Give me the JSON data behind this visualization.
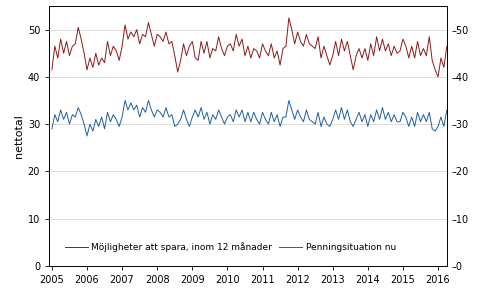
{
  "title": "",
  "ylabel_left": "nettotal",
  "ylim": [
    0,
    55
  ],
  "yticks": [
    0,
    10,
    20,
    30,
    40,
    50
  ],
  "xlim_start": 2004.92,
  "xlim_end": 2016.25,
  "xticks": [
    2005,
    2006,
    2007,
    2008,
    2009,
    2010,
    2011,
    2012,
    2013,
    2014,
    2015,
    2016
  ],
  "color_red": "#8B1A1A",
  "color_blue": "#1F5F9F",
  "legend_labels": [
    "Möjligheter att spara, inom 12 månader",
    "Penningsituation nu"
  ],
  "red_series": [
    41.5,
    46.5,
    44.0,
    48.0,
    45.0,
    47.5,
    44.5,
    46.5,
    47.0,
    50.5,
    48.0,
    45.0,
    41.5,
    44.0,
    42.0,
    45.0,
    42.5,
    44.0,
    43.0,
    47.5,
    44.5,
    46.5,
    45.5,
    43.5,
    46.5,
    51.0,
    48.0,
    49.5,
    48.5,
    50.0,
    47.0,
    49.0,
    48.5,
    51.5,
    49.0,
    46.5,
    49.0,
    48.5,
    47.5,
    49.5,
    47.0,
    47.5,
    44.5,
    41.0,
    43.5,
    47.0,
    44.5,
    46.5,
    47.5,
    44.0,
    43.5,
    47.5,
    45.0,
    47.5,
    44.0,
    46.0,
    45.5,
    48.5,
    46.0,
    44.5,
    46.5,
    47.0,
    45.5,
    49.0,
    46.5,
    48.0,
    44.5,
    46.5,
    44.0,
    46.0,
    45.5,
    44.0,
    47.0,
    45.5,
    44.5,
    47.0,
    44.0,
    45.5,
    42.5,
    46.0,
    46.5,
    52.5,
    50.0,
    47.0,
    49.5,
    47.5,
    46.5,
    49.0,
    47.0,
    46.5,
    46.0,
    48.5,
    44.0,
    46.5,
    44.5,
    42.5,
    44.5,
    47.5,
    44.5,
    48.0,
    45.5,
    47.5,
    44.5,
    41.5,
    44.5,
    46.0,
    44.0,
    46.0,
    43.5,
    47.0,
    44.5,
    48.5,
    45.5,
    48.0,
    45.5,
    47.0,
    44.5,
    46.5,
    45.0,
    45.5,
    48.0,
    46.5,
    44.0,
    46.5,
    44.0,
    47.5,
    44.5,
    46.0,
    44.5,
    48.5,
    43.5,
    41.5,
    40.0,
    44.0,
    42.0,
    46.5,
    44.0,
    46.5,
    43.5,
    46.5,
    41.5,
    45.5,
    43.0,
    40.5,
    39.5,
    43.0,
    40.5,
    44.0,
    42.0,
    44.5,
    42.0,
    45.0,
    42.5,
    43.0,
    44.5,
    48.5,
    51.5,
    46.5,
    44.5,
    48.5,
    45.0,
    48.0,
    44.5,
    47.0,
    44.0,
    39.0,
    38.5,
    43.5,
    45.5
  ],
  "blue_series": [
    29.0,
    32.0,
    30.5,
    33.0,
    31.0,
    32.5,
    30.0,
    32.0,
    31.5,
    33.5,
    32.0,
    30.0,
    27.5,
    30.0,
    28.5,
    31.0,
    29.5,
    31.5,
    29.0,
    32.5,
    30.5,
    32.0,
    31.0,
    29.5,
    31.5,
    35.0,
    33.0,
    34.5,
    33.0,
    34.0,
    31.5,
    33.5,
    32.5,
    35.0,
    33.0,
    31.5,
    33.0,
    32.5,
    31.5,
    33.5,
    31.5,
    32.0,
    29.5,
    30.0,
    31.0,
    33.0,
    31.0,
    29.5,
    31.5,
    33.0,
    31.5,
    33.5,
    31.0,
    32.5,
    30.0,
    32.0,
    31.0,
    33.0,
    31.5,
    30.0,
    31.5,
    32.0,
    30.5,
    33.0,
    31.5,
    33.0,
    30.5,
    32.5,
    30.5,
    32.5,
    31.0,
    30.0,
    32.5,
    31.0,
    30.0,
    32.5,
    30.5,
    32.0,
    29.5,
    31.5,
    31.5,
    35.0,
    33.0,
    31.0,
    33.0,
    31.5,
    30.5,
    33.0,
    31.0,
    30.5,
    30.0,
    32.5,
    29.5,
    31.5,
    30.0,
    29.5,
    31.0,
    33.0,
    31.0,
    33.5,
    31.0,
    33.0,
    30.5,
    29.5,
    31.0,
    32.5,
    30.5,
    32.0,
    29.5,
    32.0,
    30.5,
    33.0,
    31.0,
    33.5,
    31.0,
    32.5,
    30.5,
    32.0,
    30.5,
    30.5,
    32.5,
    31.5,
    29.5,
    31.5,
    29.5,
    32.5,
    30.5,
    32.0,
    30.5,
    32.5,
    29.0,
    28.5,
    29.5,
    31.5,
    29.5,
    33.0,
    31.0,
    32.5,
    30.0,
    32.5,
    29.5,
    31.5,
    29.5,
    29.5,
    29.5,
    31.5,
    29.5,
    32.0,
    30.5,
    32.5,
    30.5,
    32.5,
    30.0,
    30.0,
    31.5,
    32.5,
    32.5,
    31.5,
    32.5,
    33.5,
    31.0,
    33.0,
    30.5,
    32.0,
    29.5,
    28.5,
    29.5,
    34.0,
    31.0
  ],
  "background_color": "#ffffff",
  "grid_color": "#d0d0d0",
  "linewidth": 0.7,
  "tick_fontsize": 7,
  "ylabel_fontsize": 8,
  "legend_fontsize": 6.5
}
